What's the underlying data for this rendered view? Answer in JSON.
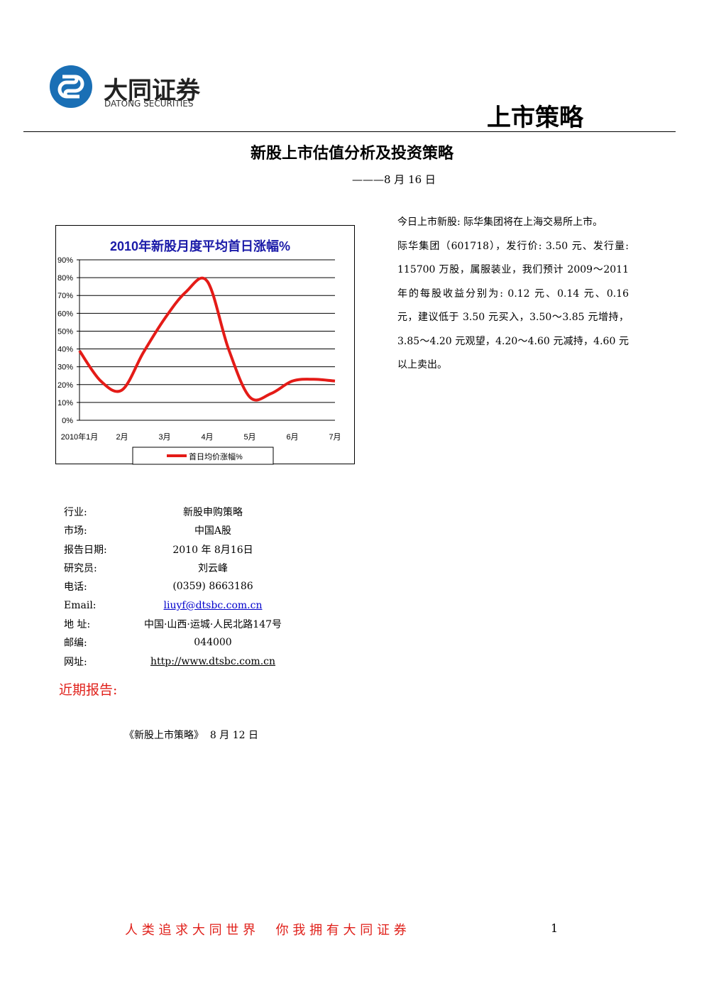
{
  "header": {
    "company": "大同证券",
    "company_en": "DATONG SECURITIES",
    "section": "上市策略"
  },
  "title": "新股上市估值分析及投资策略",
  "date": "———8 月 16 日",
  "paragraphs": [
    "今日上市新股: 际华集团将在上海交易所上市。",
    "际华集团（601718），发行价: 3.50 元、发行量: 115700 万股，属服装业，我们预计 2009～2011 年的每股收益分别为: 0.12 元、0.14 元、0.16 元，建议低于 3.50 元买入，3.50～3.85 元增持，3.85～4.20 元观望，4.20～4.60 元减持，4.60 元以上卖出。"
  ],
  "chart_data": {
    "type": "line",
    "title": "2010年新股月度平均首日涨幅%",
    "categories": [
      "2010年1月",
      null,
      "2月",
      null,
      "3月",
      null,
      "4月",
      null,
      "5月",
      null,
      "6月",
      null,
      "7月"
    ],
    "series": [
      {
        "name": "首日均价涨幅%",
        "color": "#e41b17",
        "values": [
          39,
          22,
          17,
          38,
          57,
          72,
          78,
          40,
          13,
          15,
          22,
          23,
          22
        ]
      }
    ],
    "ylim": [
      0,
      90
    ],
    "yticks": [
      {
        "value": 0,
        "label": "0%"
      },
      {
        "value": 10,
        "label": "10%"
      },
      {
        "value": 20,
        "label": "20%"
      },
      {
        "value": 30,
        "label": "30%"
      },
      {
        "value": 40,
        "label": "40%"
      },
      {
        "value": 50,
        "label": "50%"
      },
      {
        "value": 60,
        "label": "60%"
      },
      {
        "value": 70,
        "label": "70%"
      },
      {
        "value": 80,
        "label": "80%"
      },
      {
        "value": 90,
        "label": "90%"
      }
    ],
    "grid": true,
    "legend": "bottom"
  },
  "info": [
    [
      "行业:",
      "新股申购策略"
    ],
    [
      "市场:",
      "中国A股"
    ],
    [
      "报告日期:",
      "2010 年 8月16日"
    ],
    [
      "研究员:",
      "刘云峰"
    ],
    [
      "电话:",
      "(0359) 8663186"
    ],
    [
      "Email:",
      "liuyf@dtsbc.com.cn"
    ],
    [
      "地 址:",
      "中国·山西·运城·人民北路147号"
    ],
    [
      "邮编:",
      "044000"
    ],
    [
      "网址:",
      "http://www.dtsbc.com.cn"
    ]
  ],
  "recent": {
    "heading": "近期报告:",
    "items": [
      "《新股上市策略》  8 月 12 日"
    ]
  },
  "footer": {
    "slogan": "人 类 追 求 大 同 世 界     你 我 拥 有 大 同 证 券",
    "page": "1"
  }
}
